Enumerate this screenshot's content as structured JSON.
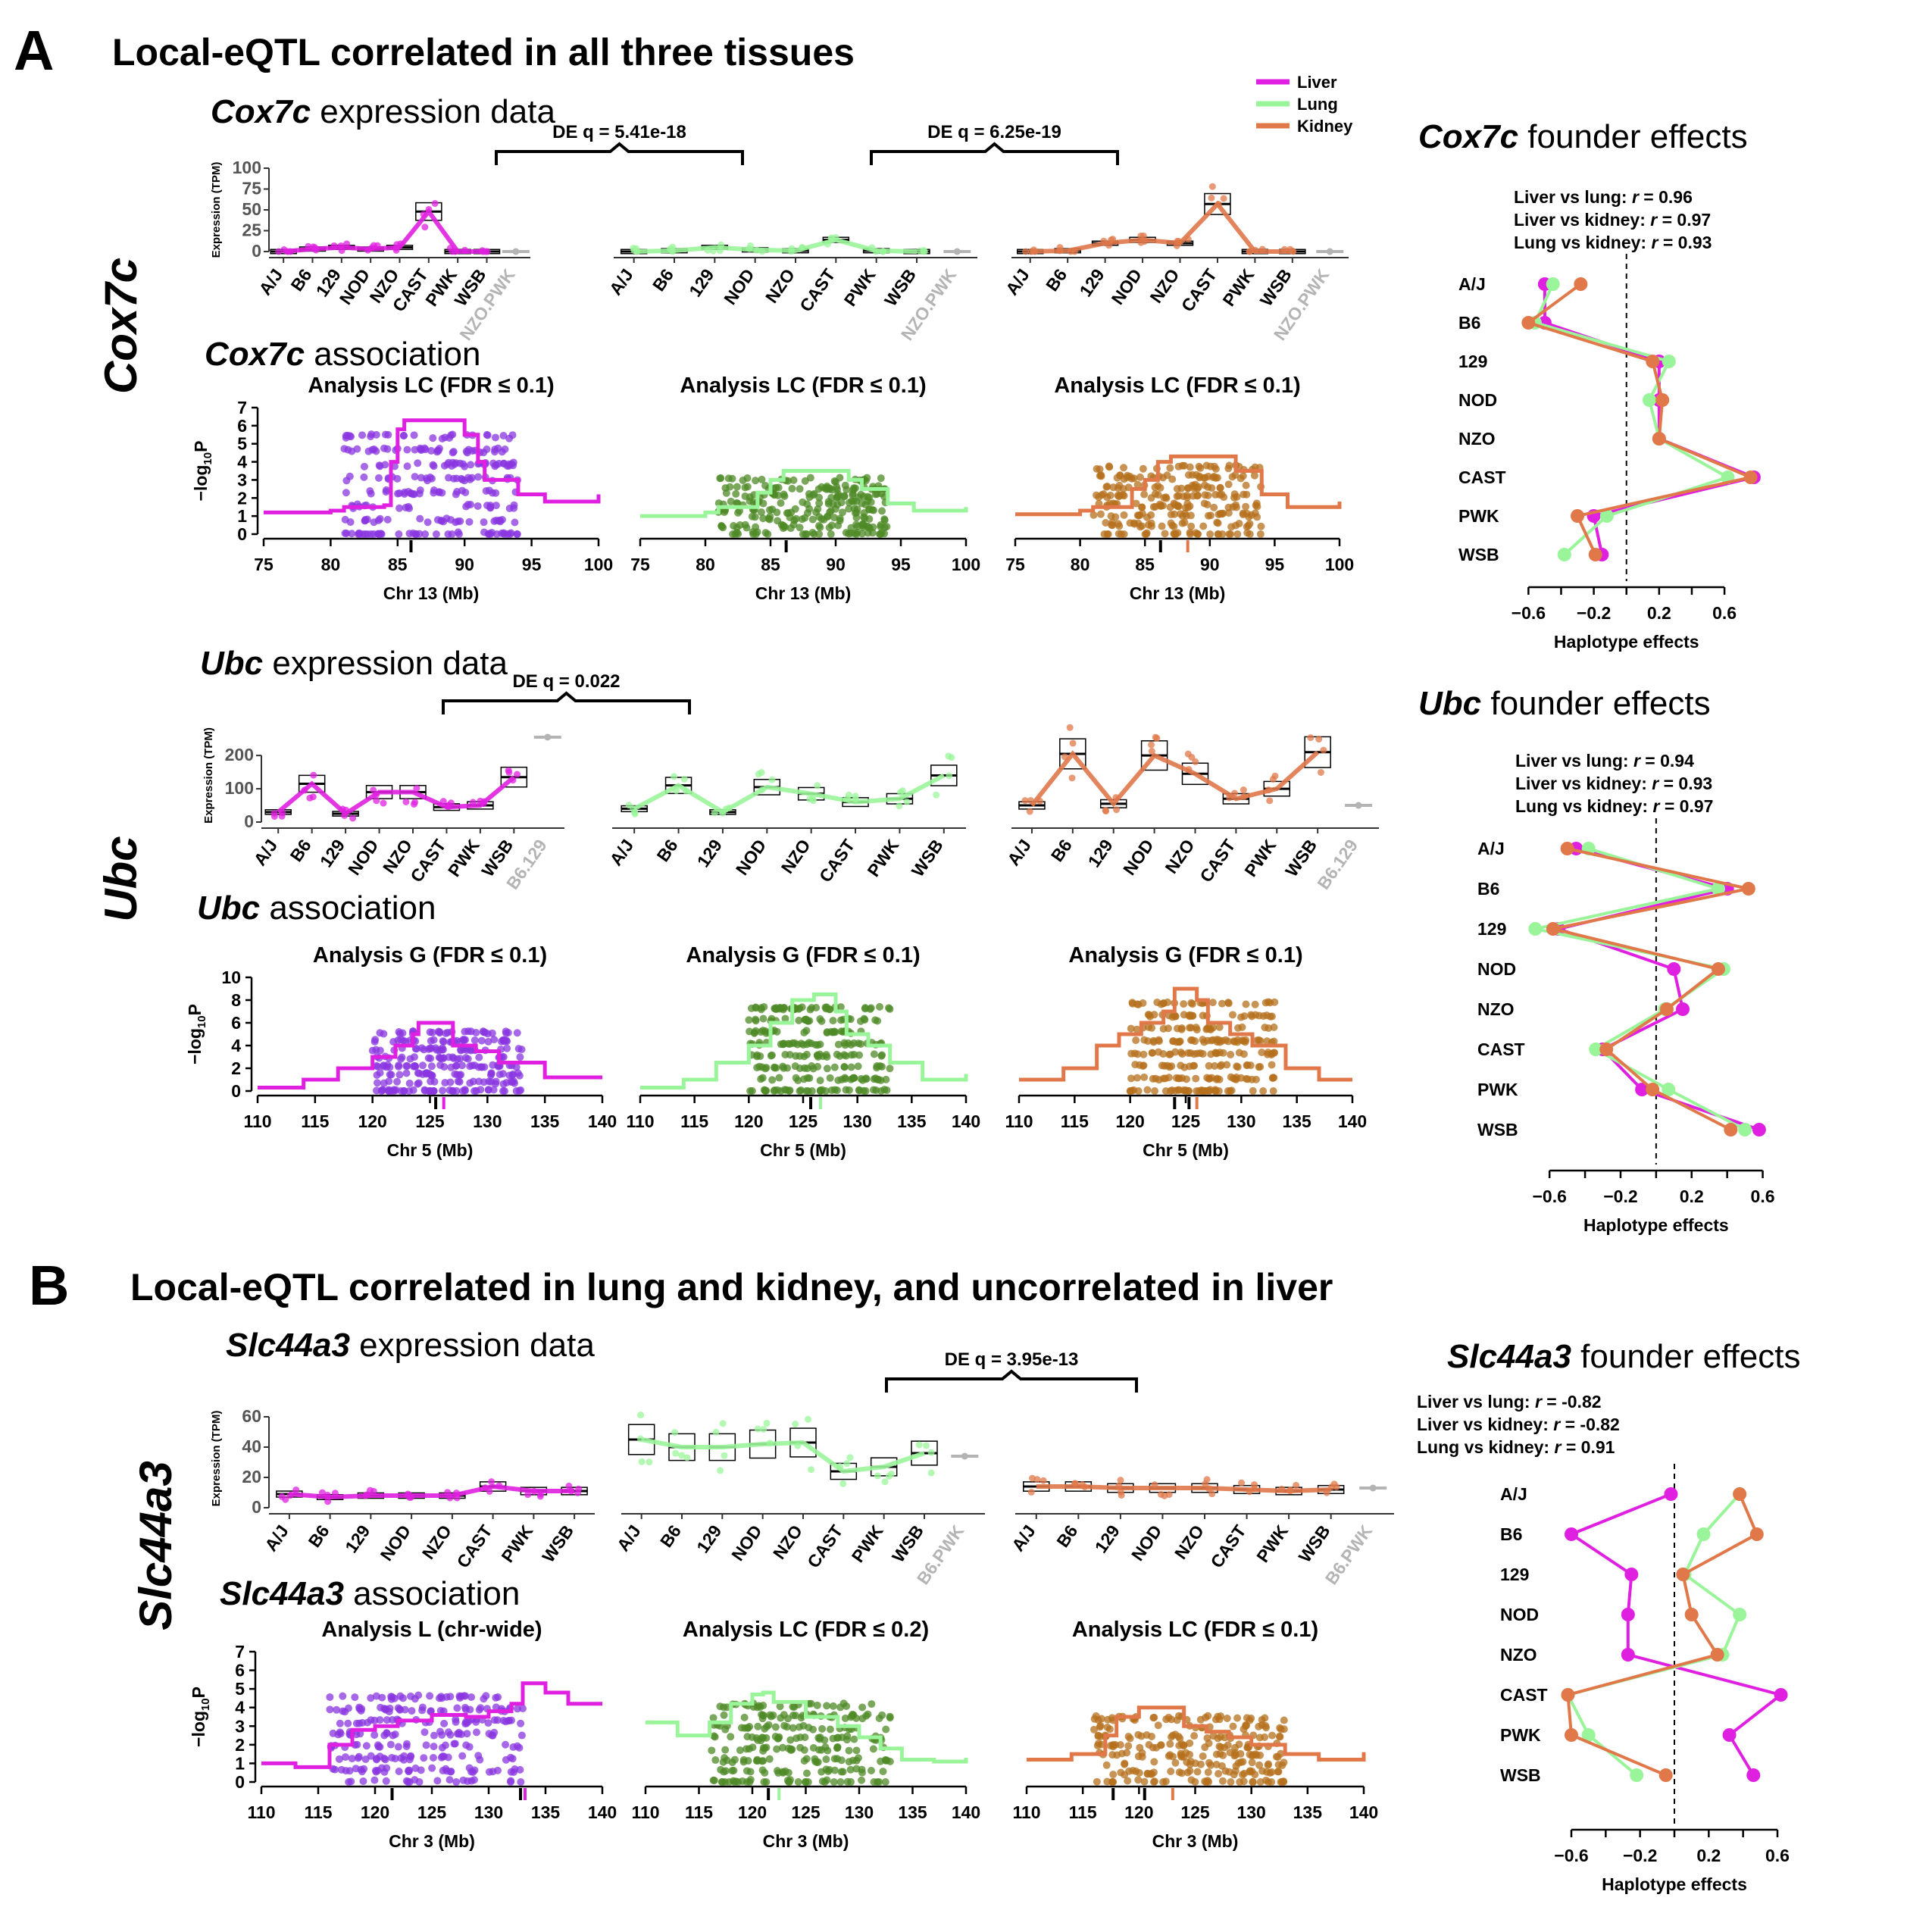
{
  "figure": {
    "panel_a": {
      "letter": "A",
      "title": "Local-eQTL correlated in all three tissues"
    },
    "panel_b": {
      "letter": "B",
      "title": "Local-eQTL correlated in lung and kidney, and uncorrelated in liver"
    }
  },
  "colors": {
    "liver": "#e020e0",
    "lung": "#9af59a",
    "kidney": "#e0784a",
    "liver_pts": "#8a35e0",
    "lung_pts": "#4e8a26",
    "kidney_pts": "#b5701c",
    "gray": "#b4b4b4"
  },
  "legend": [
    {
      "label": "Liver",
      "color": "#e020e0"
    },
    {
      "label": "Lung",
      "color": "#9af59a"
    },
    {
      "label": "Kidney",
      "color": "#e0784a"
    }
  ],
  "labels": {
    "expression_y": "Expression (TPM)",
    "association_y": "−log",
    "association_y_sub": "10",
    "association_y_end": "P",
    "haplotype_x": "Haplotype effects",
    "expression_suffix": " expression data",
    "association_suffix": " association",
    "founder_suffix": " founder effects"
  },
  "founder_strains": [
    "A/J",
    "B6",
    "129",
    "NOD",
    "NZO",
    "CAST",
    "PWK",
    "WSB"
  ],
  "chart_data": [
    {
      "id": "cox7c",
      "gene": "Cox7c",
      "row_label": "Cox7c",
      "expression": {
        "type": "box",
        "ylim": [
          0,
          100
        ],
        "yticks": [
          0,
          25,
          50,
          75,
          100
        ],
        "tissues": [
          {
            "tissue": "Liver",
            "strains": [
              "A/J",
              "B6",
              "129",
              "NOD",
              "NZO",
              "CAST",
              "PWK",
              "WSB"
            ],
            "medians": [
              0,
              3,
              5,
              3,
              5,
              48,
              0,
              0
            ],
            "extra": "NZO.PWK",
            "extra_value": 0
          },
          {
            "tissue": "Lung",
            "strains": [
              "A/J",
              "B6",
              "129",
              "NOD",
              "NZO",
              "CAST",
              "PWK",
              "WSB"
            ],
            "medians": [
              0,
              1,
              5,
              2,
              1,
              14,
              1,
              0
            ],
            "extra": "NZO.PWK",
            "extra_value": 0
          },
          {
            "tissue": "Kidney",
            "strains": [
              "A/J",
              "B6",
              "129",
              "NOD",
              "NZO",
              "CAST",
              "PWK",
              "WSB"
            ],
            "medians": [
              0,
              1,
              10,
              14,
              10,
              57,
              0,
              0
            ],
            "extra": "NZO.PWK",
            "extra_value": 0
          }
        ],
        "de": [
          {
            "label": "DE q = 5.41e-18"
          },
          {
            "label": "DE q = 6.25e-19"
          }
        ]
      },
      "association": {
        "type": "manhattan",
        "chr_label": "Chr 13 (Mb)",
        "xlim": [
          75,
          100
        ],
        "xticks": [
          75,
          80,
          85,
          90,
          95,
          100
        ],
        "ylim": [
          0,
          7
        ],
        "yticks": [
          0,
          1,
          2,
          3,
          4,
          5,
          6,
          7
        ],
        "cluster": [
          81,
          94
        ],
        "panels": [
          {
            "tissue": "Liver",
            "title": "Analysis LC (FDR ≤ 0.1)",
            "curve_x": [
              75,
              80,
              81,
              84,
              84.5,
              85,
              85.5,
              86,
              89,
              90,
              91,
              91.5,
              94,
              96,
              100
            ],
            "curve_y": [
              1.2,
              1.3,
              1.5,
              1.6,
              4,
              5.8,
              6.3,
              6.3,
              6.3,
              5.5,
              4,
              3,
              2.2,
              1.8,
              2.2
            ],
            "marks": [
              86
            ]
          },
          {
            "tissue": "Lung",
            "title": "Analysis LC (FDR ≤ 0.1)",
            "curve_x": [
              75,
              80,
              81,
              84,
              85,
              86,
              90,
              91,
              92,
              94,
              96,
              100
            ],
            "curve_y": [
              1,
              1.2,
              1.5,
              2.3,
              3,
              3.5,
              3.5,
              3,
              2.5,
              1.7,
              1.3,
              1.5
            ],
            "marks": [
              86.2
            ]
          },
          {
            "tissue": "Kidney",
            "title": "Analysis LC (FDR ≤ 0.1)",
            "curve_x": [
              75,
              80,
              81,
              84,
              85,
              86,
              87,
              91,
              92,
              94,
              96,
              100
            ],
            "curve_y": [
              1.1,
              1.3,
              1.5,
              2.5,
              3,
              4,
              4.3,
              4.3,
              3.5,
              2.2,
              1.5,
              1.8
            ],
            "marks": [
              86.2,
              88.3
            ]
          }
        ]
      },
      "founder": {
        "type": "line",
        "correlations": [
          {
            "pair": "Liver vs lung: ",
            "r": "r",
            "value": " = 0.96"
          },
          {
            "pair": "Liver vs kidney: ",
            "r": "r",
            "value": " = 0.97"
          },
          {
            "pair": "Lung vs kidney: ",
            "r": "r",
            "value": " = 0.93"
          }
        ],
        "xlim": [
          -0.75,
          0.85
        ],
        "xticks": [
          "−0.6",
          "−0.2",
          "0.2",
          "0.6"
        ],
        "xtick_values": [
          -0.6,
          -0.2,
          0.2,
          0.6
        ],
        "series": [
          {
            "name": "Liver",
            "values": [
              -0.5,
              -0.5,
              0.2,
              0.2,
              0.2,
              0.78,
              -0.2,
              -0.15
            ]
          },
          {
            "name": "Lung",
            "values": [
              -0.45,
              -0.56,
              0.26,
              0.14,
              0.2,
              0.62,
              -0.12,
              -0.38
            ]
          },
          {
            "name": "Kidney",
            "values": [
              -0.28,
              -0.6,
              0.16,
              0.22,
              0.2,
              0.76,
              -0.3,
              -0.19
            ]
          }
        ]
      }
    },
    {
      "id": "ubc",
      "gene": "Ubc",
      "row_label": "Ubc",
      "expression": {
        "type": "box",
        "ylim": [
          0,
          280
        ],
        "yticks": [
          0,
          100,
          200
        ],
        "tissues": [
          {
            "tissue": "Liver",
            "strains": [
              "A/J",
              "B6",
              "129",
              "NOD",
              "NZO",
              "CAST",
              "PWK",
              "WSB"
            ],
            "medians": [
              30,
              115,
              25,
              90,
              90,
              45,
              50,
              135
            ],
            "extra": "B6.129",
            "extra_value": 255
          },
          {
            "tissue": "Lung",
            "strains": [
              "A/J",
              "B6",
              "129",
              "NOD",
              "NZO",
              "CAST",
              "PWK",
              "WSB"
            ],
            "medians": [
              40,
              110,
              30,
              105,
              85,
              60,
              70,
              140
            ],
            "extra": "",
            "extra_value": 0
          },
          {
            "tissue": "Kidney",
            "strains": [
              "A/J",
              "B6",
              "129",
              "NOD",
              "NZO",
              "CAST",
              "PWK",
              "WSB"
            ],
            "medians": [
              50,
              205,
              55,
              200,
              145,
              70,
              100,
              210
            ],
            "extra": "B6.129",
            "extra_value": 50
          }
        ],
        "de": [
          {
            "label": "DE q = 0.022"
          }
        ]
      },
      "association": {
        "type": "manhattan",
        "chr_label": "Chr 5 (Mb)",
        "xlim": [
          110,
          140
        ],
        "xticks": [
          110,
          115,
          120,
          125,
          130,
          135,
          140
        ],
        "ylim": [
          0,
          10
        ],
        "yticks": [
          0,
          2,
          4,
          6,
          8,
          10
        ],
        "cluster": [
          120,
          133
        ],
        "panels": [
          {
            "tissue": "Liver",
            "title": "Analysis G (FDR ≤ 0.1)",
            "curve_x": [
              110,
              114,
              117,
              120,
              122,
              123.5,
              124,
              126,
              127,
              129,
              131,
              135,
              140
            ],
            "curve_y": [
              0.3,
              1,
              2,
              3,
              4,
              5,
              6,
              6,
              4,
              3.5,
              2.5,
              1.2,
              1.2
            ],
            "marks": [
              125.5,
              126.2
            ]
          },
          {
            "tissue": "Lung",
            "title": "Analysis G (FDR ≤ 0.1)",
            "curve_x": [
              110,
              114,
              117,
              120,
              122,
              124,
              126,
              128,
              129,
              131,
              133,
              136,
              140
            ],
            "curve_y": [
              0.3,
              1,
              2.5,
              4,
              6,
              8,
              8.5,
              7,
              5,
              4,
              2.5,
              1,
              1.5
            ],
            "marks": [
              125.7,
              126.6
            ]
          },
          {
            "tissue": "Kidney",
            "title": "Analysis G (FDR ≤ 0.1)",
            "curve_x": [
              110,
              114,
              117,
              119,
              121,
              123,
              124,
              126,
              127,
              129,
              131,
              134,
              137,
              140
            ],
            "curve_y": [
              1,
              2,
              4,
              5,
              6,
              7,
              9,
              8,
              6,
              5,
              4,
              2,
              1,
              1
            ],
            "marks": [
              124,
              125.3,
              126
            ]
          }
        ]
      },
      "founder": {
        "type": "line",
        "correlations": [
          {
            "pair": "Liver vs lung: ",
            "r": "r",
            "value": " = 0.94"
          },
          {
            "pair": "Liver vs kidney: ",
            "r": "r",
            "value": " = 0.93"
          },
          {
            "pair": "Lung vs kidney: ",
            "r": "r",
            "value": " = 0.97"
          }
        ],
        "xlim": [
          -0.75,
          0.7
        ],
        "xticks": [
          "−0.6",
          "−0.2",
          "0.2",
          "0.6"
        ],
        "xtick_values": [
          -0.6,
          -0.2,
          0.2,
          0.6
        ],
        "series": [
          {
            "name": "Liver",
            "values": [
              -0.45,
              0.4,
              -0.55,
              0.1,
              0.15,
              -0.3,
              -0.08,
              0.58
            ]
          },
          {
            "name": "Lung",
            "values": [
              -0.38,
              0.35,
              -0.68,
              0.38,
              0.05,
              -0.34,
              0.07,
              0.5
            ]
          },
          {
            "name": "Kidney",
            "values": [
              -0.5,
              0.52,
              -0.58,
              0.35,
              0.06,
              -0.28,
              -0.02,
              0.42
            ]
          }
        ]
      }
    },
    {
      "id": "slc44a3",
      "gene": "Slc44a3",
      "row_label": "Slc44a3",
      "expression": {
        "type": "box",
        "ylim": [
          0,
          65
        ],
        "yticks": [
          0,
          20,
          40,
          60
        ],
        "tissues": [
          {
            "tissue": "Liver",
            "strains": [
              "A/J",
              "B6",
              "129",
              "NOD",
              "NZO",
              "CAST",
              "PWK",
              "WSB"
            ],
            "medians": [
              9,
              7,
              8,
              8,
              8,
              14,
              11,
              11
            ],
            "extra": "",
            "extra_value": 0
          },
          {
            "tissue": "Lung",
            "strains": [
              "A/J",
              "B6",
              "129",
              "NOD",
              "NZO",
              "CAST",
              "PWK",
              "WSB"
            ],
            "medians": [
              45,
              40,
              40,
              42,
              43,
              24,
              27,
              36
            ],
            "extra": "B6.PWK",
            "extra_value": 34
          },
          {
            "tissue": "Kidney",
            "strains": [
              "A/J",
              "B6",
              "129",
              "NOD",
              "NZO",
              "CAST",
              "PWK",
              "WSB"
            ],
            "medians": [
              14,
              14,
              13,
              13,
              13,
              12,
              11,
              12
            ],
            "extra": "B6.PWK",
            "extra_value": 13
          }
        ],
        "de": [
          {
            "label": "DE q = 3.95e-13"
          }
        ]
      },
      "association": {
        "type": "manhattan",
        "chr_label": "Chr 3 (Mb)",
        "xlim": [
          110,
          140
        ],
        "xticks": [
          110,
          115,
          120,
          125,
          130,
          135,
          140
        ],
        "ylim": [
          0,
          7
        ],
        "yticks": [
          0,
          1,
          2,
          3,
          4,
          5,
          6,
          7
        ],
        "cluster": [
          116,
          133
        ],
        "panels": [
          {
            "tissue": "Liver",
            "title": "Analysis L (chr-wide)",
            "curve_x": [
              110,
              113,
              116,
              118,
              120,
              122,
              125,
              128,
              130,
              132,
              133,
              135,
              137,
              140
            ],
            "curve_y": [
              1,
              0.8,
              2,
              2.8,
              3,
              3.3,
              3.6,
              3.5,
              3.8,
              4.2,
              5.3,
              4.8,
              4.2,
              4.2
            ],
            "marks": [
              121.5,
              132.8,
              133.2
            ]
          },
          {
            "tissue": "Lung",
            "title": "Analysis LC (FDR ≤ 0.2)",
            "curve_x": [
              110,
              113,
              116,
              118,
              120,
              121,
              122,
              125,
              128,
              130,
              132,
              134,
              137,
              140
            ],
            "curve_y": [
              3.2,
              2.5,
              3.2,
              4.2,
              4.7,
              4.8,
              4.3,
              3.5,
              3,
              2.4,
              1.8,
              1.2,
              1.1,
              1.3
            ],
            "marks": [
              121.5,
              122.5
            ]
          },
          {
            "tissue": "Kidney",
            "title": "Analysis LC (FDR ≤ 0.1)",
            "curve_x": [
              110,
              114,
              117,
              118,
              120,
              122,
              124,
              126,
              128,
              130,
              133,
              136,
              140
            ],
            "curve_y": [
              1.2,
              1.5,
              2.5,
              3.5,
              4,
              4,
              3,
              2.7,
              2.4,
              2,
              1.5,
              1.2,
              1.6
            ],
            "marks": [
              117.7,
              120.5,
              123
            ]
          }
        ]
      },
      "founder": {
        "type": "line",
        "correlations": [
          {
            "pair": "Liver vs lung: ",
            "r": "r",
            "value": " = -0.82"
          },
          {
            "pair": "Liver vs kidney: ",
            "r": "r",
            "value": " = -0.82"
          },
          {
            "pair": "Lung vs kidney: ",
            "r": "r",
            "value": " = 0.91"
          }
        ],
        "xlim": [
          -0.75,
          0.75
        ],
        "xticks": [
          "−0.6",
          "−0.2",
          "0.2",
          "0.6"
        ],
        "xtick_values": [
          -0.6,
          -0.2,
          0.2,
          0.6
        ],
        "series": [
          {
            "name": "Liver",
            "values": [
              -0.02,
              -0.6,
              -0.25,
              -0.27,
              -0.27,
              0.62,
              0.32,
              0.46
            ]
          },
          {
            "name": "Lung",
            "values": [
              0.38,
              0.17,
              0.06,
              0.38,
              0.28,
              -0.62,
              -0.5,
              -0.22
            ]
          },
          {
            "name": "Kidney",
            "values": [
              0.38,
              0.48,
              0.05,
              0.1,
              0.25,
              -0.62,
              -0.6,
              -0.05
            ]
          }
        ]
      }
    }
  ]
}
